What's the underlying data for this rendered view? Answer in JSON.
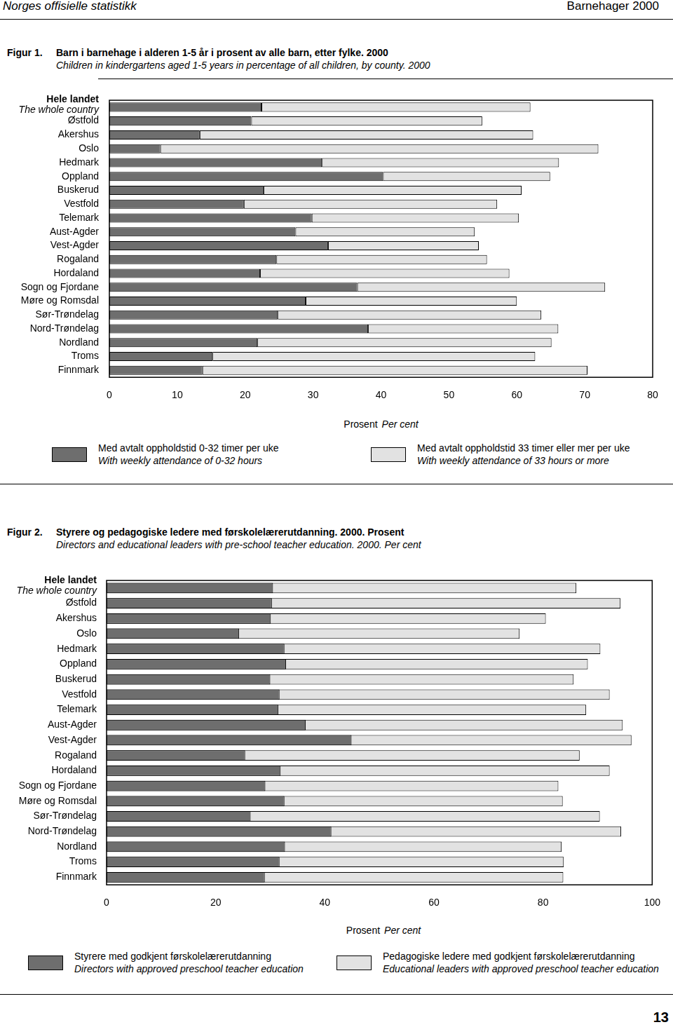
{
  "header": {
    "left": "Norges offisielle statistikk",
    "right": "Barnehager 2000"
  },
  "page_number": "13",
  "chart_data": [
    {
      "type": "bar",
      "figure_label": "Figur 1.",
      "title": "Barn i barnehage i alderen 1-5 år i prosent av alle barn, etter fylke. 2000",
      "subtitle": "Children in kindergartens aged 1-5 years in percentage of all children, by county. 2000",
      "orientation": "horizontal",
      "stacked": true,
      "grid": false,
      "legend": "bottom",
      "x_label": "Prosent",
      "x_label_en": "Per cent",
      "categories": [
        [
          "Hele landet",
          "The whole country"
        ],
        "Østfold",
        "Akershus",
        "Oslo",
        "Hedmark",
        "Oppland",
        "Buskerud",
        "Vestfold",
        "Telemark",
        "Aust-Agder",
        "Vest-Agder",
        "Rogaland",
        "Hordaland",
        "Sogn og Fjordane",
        "Møre og Romsdal",
        "Sør-Trøndelag",
        "Nord-Trøndelag",
        "Nordland",
        "Troms",
        "Finnmark"
      ],
      "series": [
        {
          "name": "Med avtalt oppholdstid 0-32 timer per uke",
          "name_en": "With weekly attendance of 0-32 hours",
          "color": "#6e6e6e",
          "values": [
            22.4,
            20.9,
            13.3,
            7.5,
            31.3,
            40.3,
            22.7,
            19.8,
            29.8,
            27.4,
            32.2,
            24.6,
            22.2,
            36.5,
            28.9,
            24.8,
            38.1,
            21.8,
            15.2,
            13.7
          ]
        },
        {
          "name": "Med avtalt oppholdstid 33 timer eller mer per uke",
          "name_en": "With weekly attendance of 33 hours or more",
          "color": "#e2e2e2",
          "values": [
            39.6,
            34.0,
            49.1,
            64.5,
            34.9,
            24.6,
            38.0,
            37.3,
            30.5,
            26.4,
            22.2,
            31.0,
            36.7,
            36.5,
            31.1,
            38.8,
            28.0,
            43.3,
            47.5,
            56.7
          ]
        }
      ],
      "xlim": [
        0,
        80
      ],
      "xticks": [
        0,
        10,
        20,
        30,
        40,
        50,
        60,
        70,
        80
      ]
    },
    {
      "type": "bar",
      "figure_label": "Figur 2.",
      "title": "Styrere og pedagogiske ledere med førskolelærerutdanning. 2000. Prosent",
      "subtitle": "Directors and educational leaders with pre-school teacher education. 2000. Per cent",
      "orientation": "horizontal",
      "stacked": false,
      "grid": false,
      "legend": "bottom",
      "x_label": "Prosent",
      "x_label_en": "Per cent",
      "categories": [
        [
          "Hele landet",
          "The whole country"
        ],
        "Østfold",
        "Akershus",
        "Oslo",
        "Hedmark",
        "Oppland",
        "Buskerud",
        "Vestfold",
        "Telemark",
        "Aust-Agder",
        "Vest-Agder",
        "Rogaland",
        "Hordaland",
        "Sogn og Fjordane",
        "Møre og Romsdal",
        "Sør-Trøndelag",
        "Nord-Trøndelag",
        "Nordland",
        "Troms",
        "Finnmark"
      ],
      "series": [
        {
          "name": "Styrere med godkjent førskolelærerutdanning",
          "name_en": "Directors with approved preschool teacher education",
          "color": "#6e6e6e",
          "values": [
            30.5,
            30.3,
            30.1,
            24.3,
            32.6,
            32.9,
            30.0,
            31.7,
            31.5,
            36.5,
            44.9,
            25.4,
            31.9,
            29.1,
            32.6,
            26.4,
            41.2,
            32.7,
            31.7,
            29.0
          ]
        },
        {
          "name": "Pedagogiske ledere med godkjent førskolelærerutdanning",
          "name_en": "Educational leaders with approved preschool teacher education",
          "color": "#e2e2e2",
          "values": [
            86.1,
            94.2,
            80.5,
            75.7,
            90.5,
            88.2,
            85.6,
            92.2,
            87.9,
            94.6,
            96.2,
            86.7,
            92.2,
            82.8,
            83.6,
            90.4,
            94.3,
            83.4,
            83.8,
            83.7
          ]
        }
      ],
      "xlim": [
        0,
        100
      ],
      "xticks": [
        0,
        20,
        40,
        60,
        80,
        100
      ]
    }
  ]
}
